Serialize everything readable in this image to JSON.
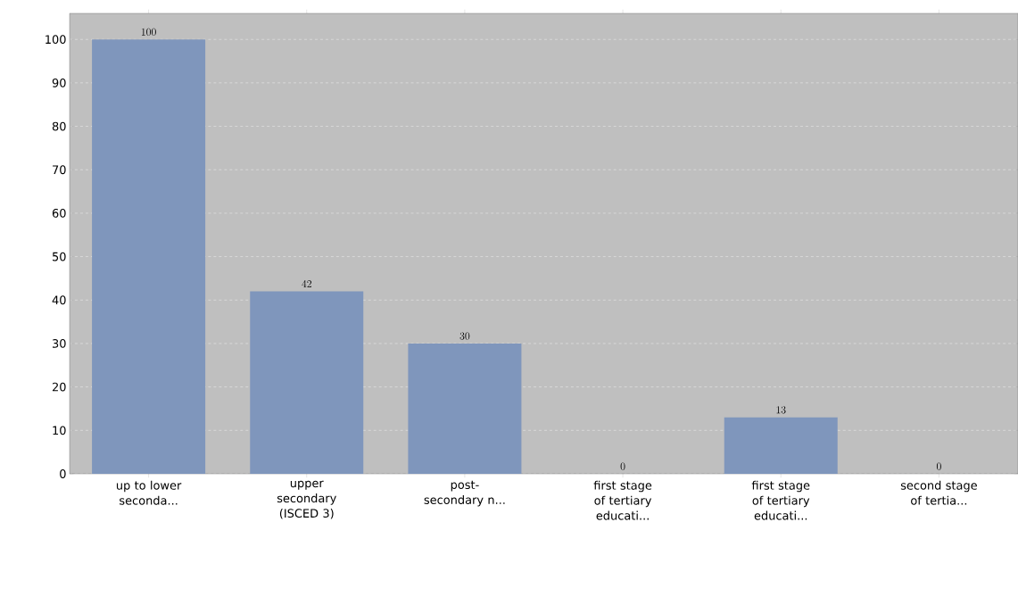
{
  "chart_data": {
    "type": "bar",
    "categories": [
      "up to lower seconda...",
      "upper secondary (ISCED 3)",
      "post-secondary n...",
      "first stage of tertiary educati...",
      "first stage of tertiary educati...",
      "second stage of tertia..."
    ],
    "values": [
      100,
      42,
      30,
      0,
      13,
      0
    ],
    "color": "#7f96bc",
    "ylim": [
      0,
      106
    ],
    "yticks": [
      0,
      10,
      20,
      30,
      40,
      50,
      60,
      70,
      80,
      90,
      100
    ],
    "grid": "y",
    "data_labels": true
  }
}
